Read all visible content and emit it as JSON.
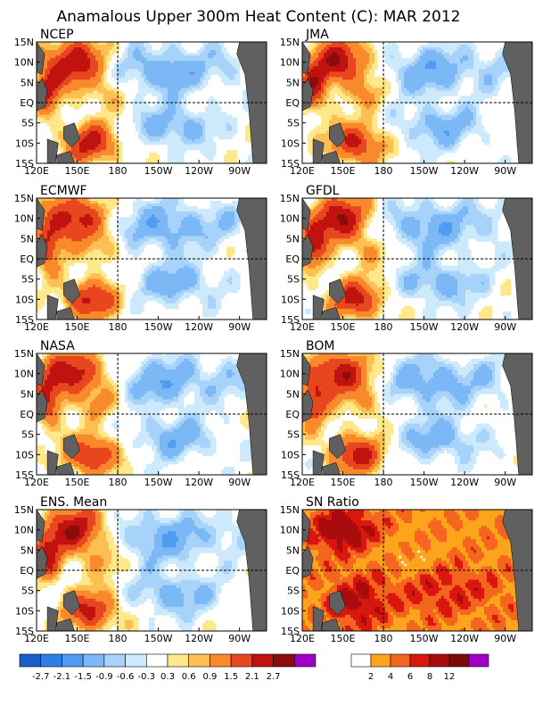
{
  "title": "Anamalous Upper 300m Heat Content (C): MAR 2012",
  "chart_data": {
    "type": "heatmap",
    "title": "Anamalous Upper 300m Heat Content (C): MAR 2012",
    "x_ticks": [
      "120E",
      "150E",
      "180",
      "150W",
      "120W",
      "90W"
    ],
    "y_ticks": [
      "15N",
      "10N",
      "5N",
      "EQ",
      "5S",
      "10S",
      "15S"
    ],
    "panels": [
      {
        "label": "NCEP",
        "scale": "anomaly"
      },
      {
        "label": "JMA",
        "scale": "anomaly"
      },
      {
        "label": "ECMWF",
        "scale": "anomaly"
      },
      {
        "label": "GFDL",
        "scale": "anomaly"
      },
      {
        "label": "NASA",
        "scale": "anomaly"
      },
      {
        "label": "BOM",
        "scale": "anomaly"
      },
      {
        "label": "ENS. Mean",
        "scale": "anomaly"
      },
      {
        "label": "SN Ratio",
        "scale": "snr"
      }
    ],
    "anomaly_colorbar": {
      "colors": [
        "#1a5fc8",
        "#2f7ee6",
        "#4f9cf0",
        "#7bb8f5",
        "#a7d2fa",
        "#cdeafd",
        "#ffffff",
        "#ffe88a",
        "#fdbf52",
        "#f98a2c",
        "#e8461e",
        "#c0120f",
        "#8a0c0c",
        "#a000c8"
      ],
      "labels": [
        "-2.7",
        "-2.1",
        "-1.5",
        "-0.9",
        "-0.6",
        "-0.3",
        "0.3",
        "0.6",
        "0.9",
        "1.5",
        "2.1",
        "2.7"
      ]
    },
    "snr_colorbar": {
      "colors": [
        "#ffffff",
        "#fca51c",
        "#f4661e",
        "#d9170f",
        "#a80c0c",
        "#7a0a0a",
        "#a000c8"
      ],
      "labels": [
        "2",
        "4",
        "6",
        "8",
        "12"
      ]
    },
    "land_color": "#606060"
  }
}
